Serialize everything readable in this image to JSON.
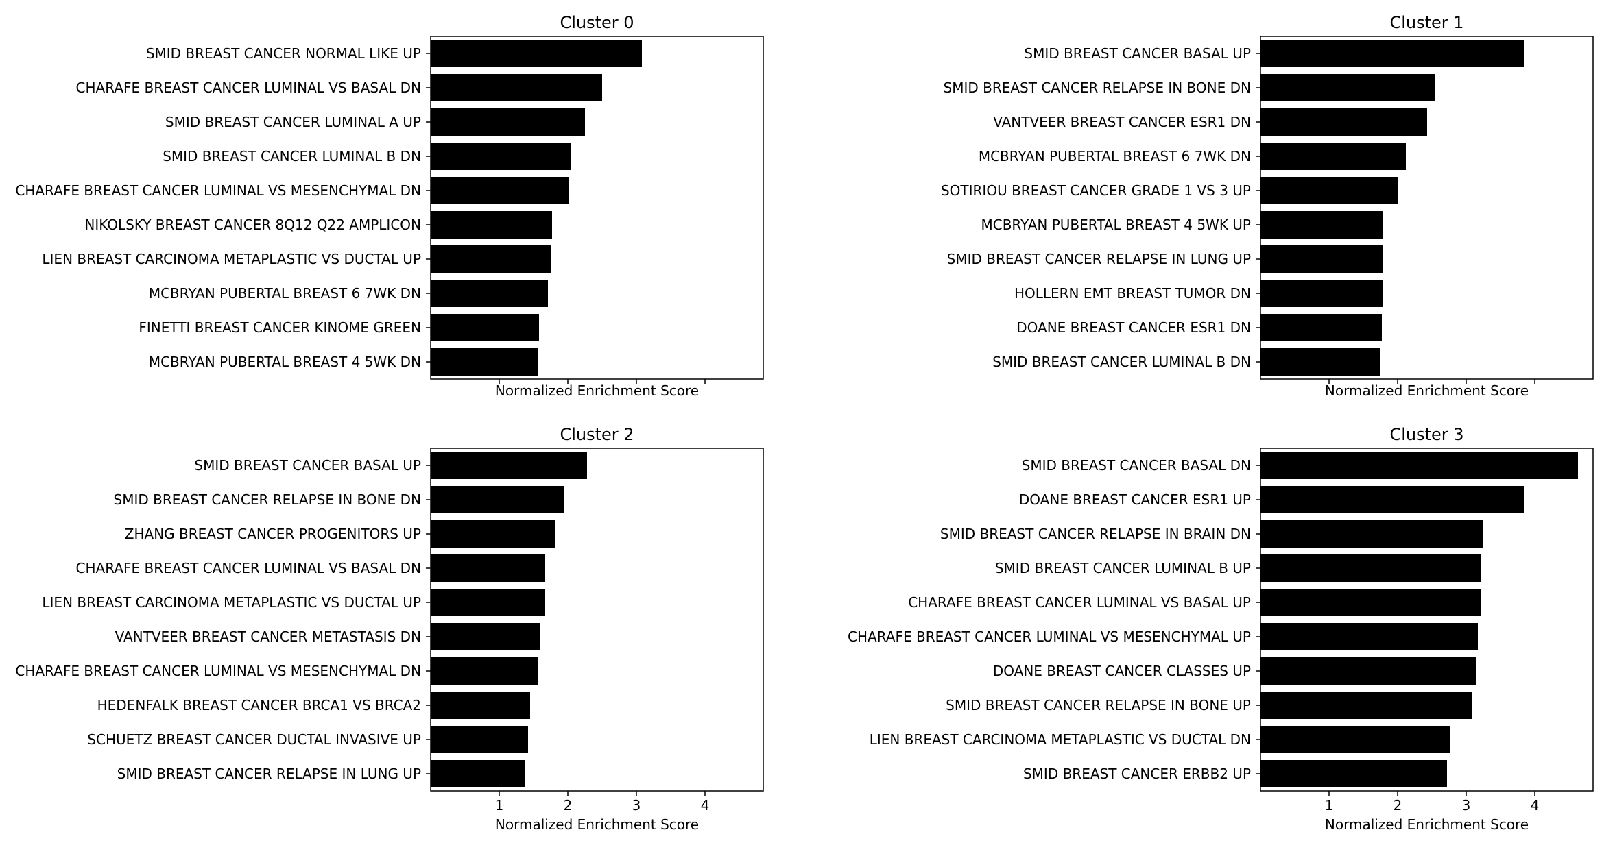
{
  "chart_data": [
    {
      "type": "bar",
      "orientation": "horizontal",
      "title": "Cluster 0",
      "xlabel": "Normalized Enrichment Score",
      "ylabel": "",
      "xlim": [
        0,
        4.85
      ],
      "xticks": [
        1,
        2,
        3,
        4
      ],
      "show_xtick_labels": false,
      "grid": false,
      "bar_color": "#000000",
      "categories": [
        "SMID BREAST CANCER NORMAL LIKE UP",
        "CHARAFE BREAST CANCER LUMINAL VS BASAL DN",
        "SMID BREAST CANCER LUMINAL A UP",
        "SMID BREAST CANCER LUMINAL B DN",
        "CHARAFE BREAST CANCER LUMINAL VS MESENCHYMAL DN",
        "NIKOLSKY BREAST CANCER 8Q12 Q22 AMPLICON",
        "LIEN BREAST CARCINOMA METAPLASTIC VS DUCTAL UP",
        "MCBRYAN PUBERTAL BREAST 6 7WK DN",
        "FINETTI BREAST CANCER KINOME GREEN",
        "MCBRYAN PUBERTAL BREAST 4 5WK DN"
      ],
      "values": [
        3.08,
        2.5,
        2.25,
        2.04,
        2.01,
        1.77,
        1.76,
        1.71,
        1.58,
        1.56
      ]
    },
    {
      "type": "bar",
      "orientation": "horizontal",
      "title": "Cluster 1",
      "xlabel": "Normalized Enrichment Score",
      "ylabel": "",
      "xlim": [
        0,
        4.85
      ],
      "xticks": [
        1,
        2,
        3,
        4
      ],
      "show_xtick_labels": false,
      "grid": false,
      "bar_color": "#000000",
      "categories": [
        "SMID BREAST CANCER BASAL UP",
        "SMID BREAST CANCER RELAPSE IN BONE DN",
        "VANTVEER BREAST CANCER ESR1 DN",
        "MCBRYAN PUBERTAL BREAST 6 7WK DN",
        "SOTIRIOU BREAST CANCER GRADE 1 VS 3 UP",
        "MCBRYAN PUBERTAL BREAST 4 5WK UP",
        "SMID BREAST CANCER RELAPSE IN LUNG UP",
        "HOLLERN EMT BREAST TUMOR DN",
        "DOANE BREAST CANCER ESR1 DN",
        "SMID BREAST CANCER LUMINAL B DN"
      ],
      "values": [
        3.84,
        2.55,
        2.43,
        2.12,
        2.0,
        1.79,
        1.79,
        1.78,
        1.77,
        1.75
      ]
    },
    {
      "type": "bar",
      "orientation": "horizontal",
      "title": "Cluster 2",
      "xlabel": "Normalized Enrichment Score",
      "ylabel": "",
      "xlim": [
        0,
        4.85
      ],
      "xticks": [
        1,
        2,
        3,
        4
      ],
      "show_xtick_labels": true,
      "grid": false,
      "bar_color": "#000000",
      "categories": [
        "SMID BREAST CANCER BASAL UP",
        "SMID BREAST CANCER RELAPSE IN BONE DN",
        "ZHANG BREAST CANCER PROGENITORS UP",
        "CHARAFE BREAST CANCER LUMINAL VS BASAL DN",
        "LIEN BREAST CARCINOMA METAPLASTIC VS DUCTAL UP",
        "VANTVEER BREAST CANCER METASTASIS DN",
        "CHARAFE BREAST CANCER LUMINAL VS MESENCHYMAL DN",
        "HEDENFALK BREAST CANCER BRCA1 VS BRCA2",
        "SCHUETZ BREAST CANCER DUCTAL INVASIVE UP",
        "SMID BREAST CANCER RELAPSE IN LUNG UP"
      ],
      "values": [
        2.28,
        1.94,
        1.82,
        1.67,
        1.67,
        1.59,
        1.56,
        1.45,
        1.42,
        1.37
      ]
    },
    {
      "type": "bar",
      "orientation": "horizontal",
      "title": "Cluster 3",
      "xlabel": "Normalized Enrichment Score",
      "ylabel": "",
      "xlim": [
        0,
        4.85
      ],
      "xticks": [
        1,
        2,
        3,
        4
      ],
      "show_xtick_labels": true,
      "grid": false,
      "bar_color": "#000000",
      "categories": [
        "SMID BREAST CANCER BASAL DN",
        "DOANE BREAST CANCER ESR1 UP",
        "SMID BREAST CANCER RELAPSE IN BRAIN DN",
        "SMID BREAST CANCER LUMINAL B UP",
        "CHARAFE BREAST CANCER LUMINAL VS BASAL UP",
        "CHARAFE BREAST CANCER LUMINAL VS MESENCHYMAL UP",
        "DOANE BREAST CANCER CLASSES UP",
        "SMID BREAST CANCER RELAPSE IN BONE UP",
        "LIEN BREAST CARCINOMA METAPLASTIC VS DUCTAL DN",
        "SMID BREAST CANCER ERBB2 UP"
      ],
      "values": [
        4.63,
        3.84,
        3.24,
        3.22,
        3.22,
        3.17,
        3.14,
        3.09,
        2.77,
        2.72
      ]
    }
  ]
}
